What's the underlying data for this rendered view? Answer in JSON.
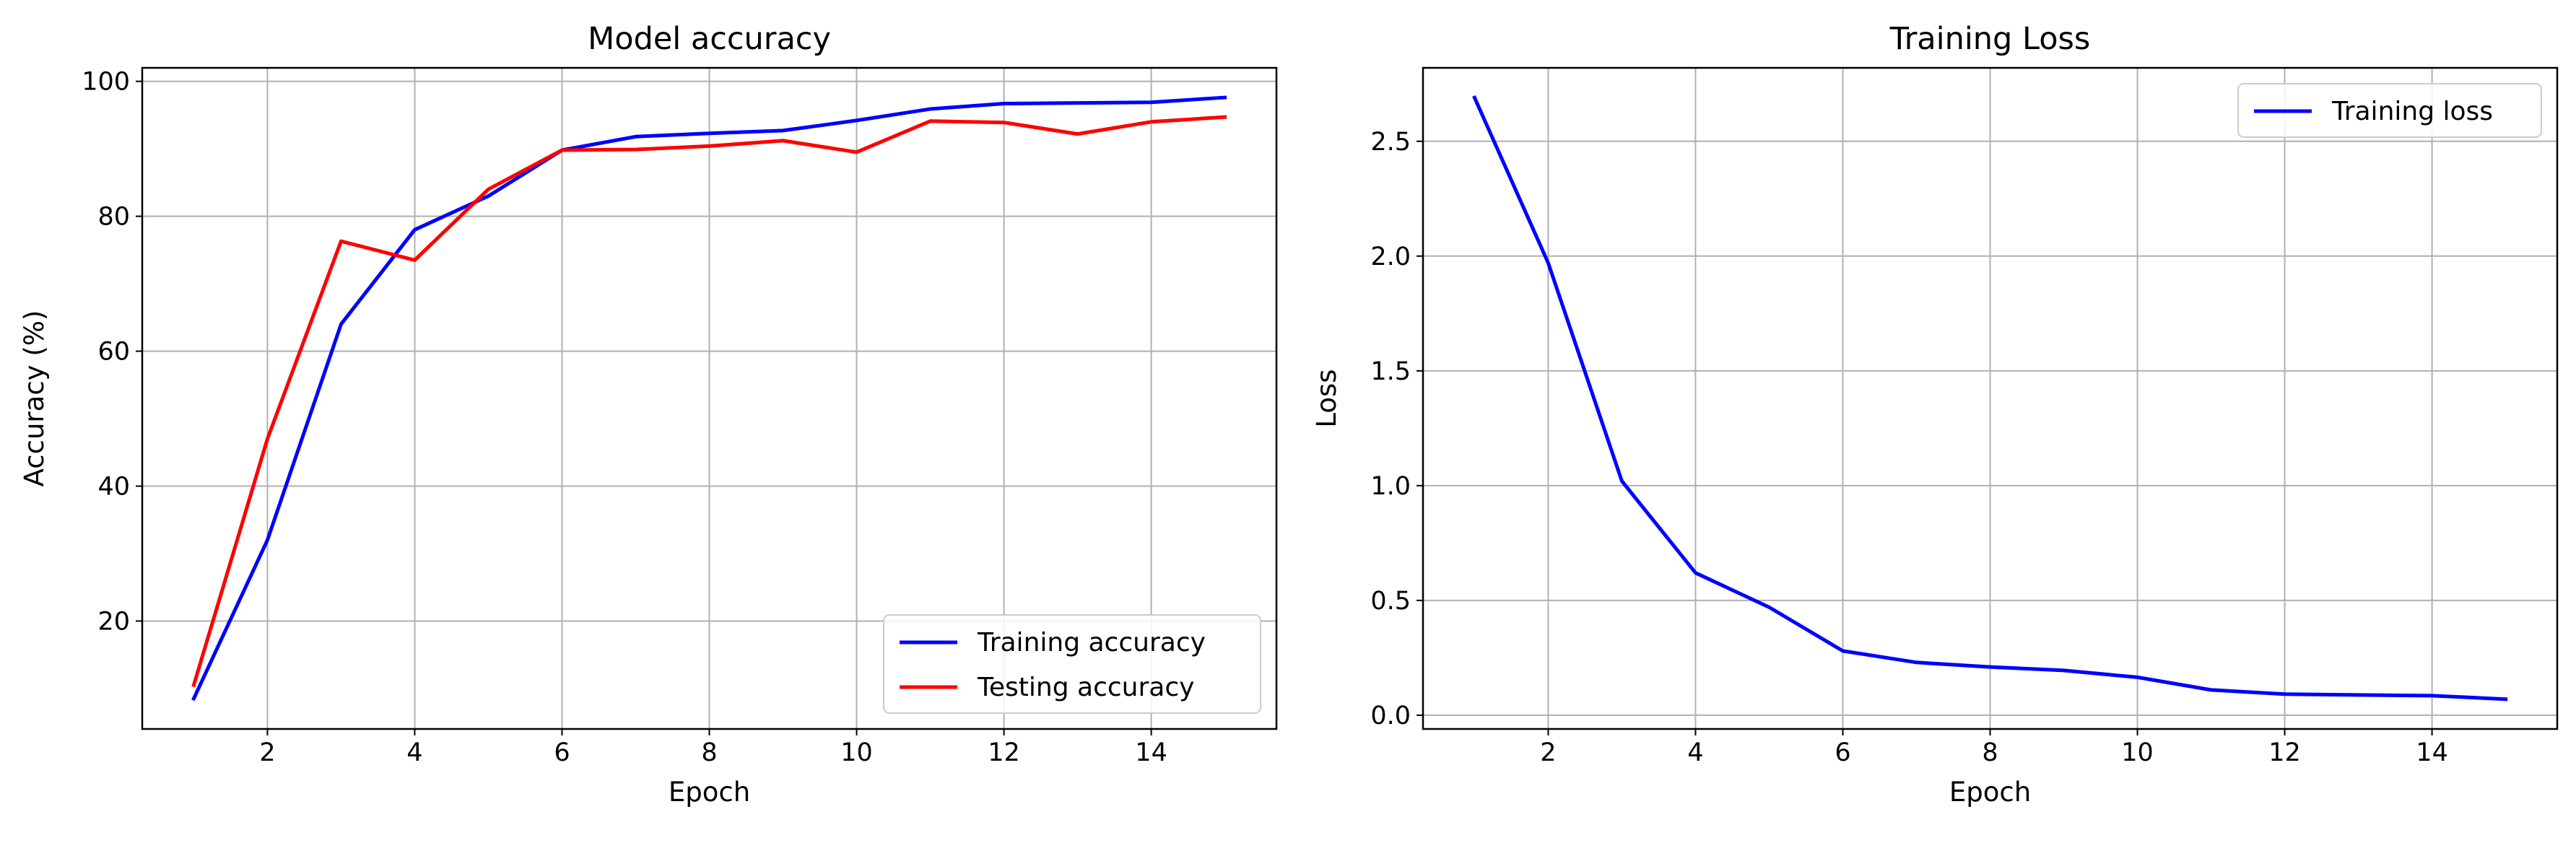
{
  "chart_data": [
    {
      "type": "line",
      "title": "Model accuracy",
      "xlabel": "Epoch",
      "ylabel": "Accuracy (%)",
      "xlim": [
        0.3,
        15.7
      ],
      "ylim": [
        4,
        102
      ],
      "xticks": [
        2,
        4,
        6,
        8,
        10,
        12,
        14
      ],
      "yticks": [
        20,
        40,
        60,
        80,
        100
      ],
      "grid": true,
      "legend_position": "lower-right",
      "x": [
        1,
        2,
        3,
        4,
        5,
        6,
        7,
        8,
        9,
        10,
        11,
        12,
        13,
        14,
        15
      ],
      "series": [
        {
          "name": "Training accuracy",
          "color": "#0000ff",
          "values": [
            8.5,
            32,
            64,
            78,
            83,
            89.8,
            91.8,
            92.3,
            92.7,
            94.2,
            95.9,
            96.7,
            96.8,
            96.9,
            97.6
          ]
        },
        {
          "name": "Testing accuracy",
          "color": "#ff0000",
          "values": [
            10.5,
            47,
            76.3,
            73.5,
            84,
            89.8,
            89.9,
            90.4,
            91.2,
            89.5,
            94.1,
            93.9,
            92.2,
            94,
            94.7
          ]
        }
      ]
    },
    {
      "type": "line",
      "title": "Training Loss",
      "xlabel": "Epoch",
      "ylabel": "Loss",
      "xlim": [
        0.3,
        15.7
      ],
      "ylim": [
        -0.06,
        2.82
      ],
      "xticks": [
        2,
        4,
        6,
        8,
        10,
        12,
        14
      ],
      "yticks": [
        0.0,
        0.5,
        1.0,
        1.5,
        2.0,
        2.5
      ],
      "ytick_labels": [
        "0.0",
        "0.5",
        "1.0",
        "1.5",
        "2.0",
        "2.5"
      ],
      "grid": true,
      "legend_position": "upper-right",
      "x": [
        1,
        2,
        3,
        4,
        5,
        6,
        7,
        8,
        9,
        10,
        11,
        12,
        13,
        14,
        15
      ],
      "series": [
        {
          "name": "Training loss",
          "color": "#0000ff",
          "values": [
            2.69,
            1.97,
            1.02,
            0.62,
            0.47,
            0.28,
            0.23,
            0.21,
            0.195,
            0.165,
            0.11,
            0.092,
            0.088,
            0.085,
            0.07
          ]
        }
      ]
    }
  ]
}
